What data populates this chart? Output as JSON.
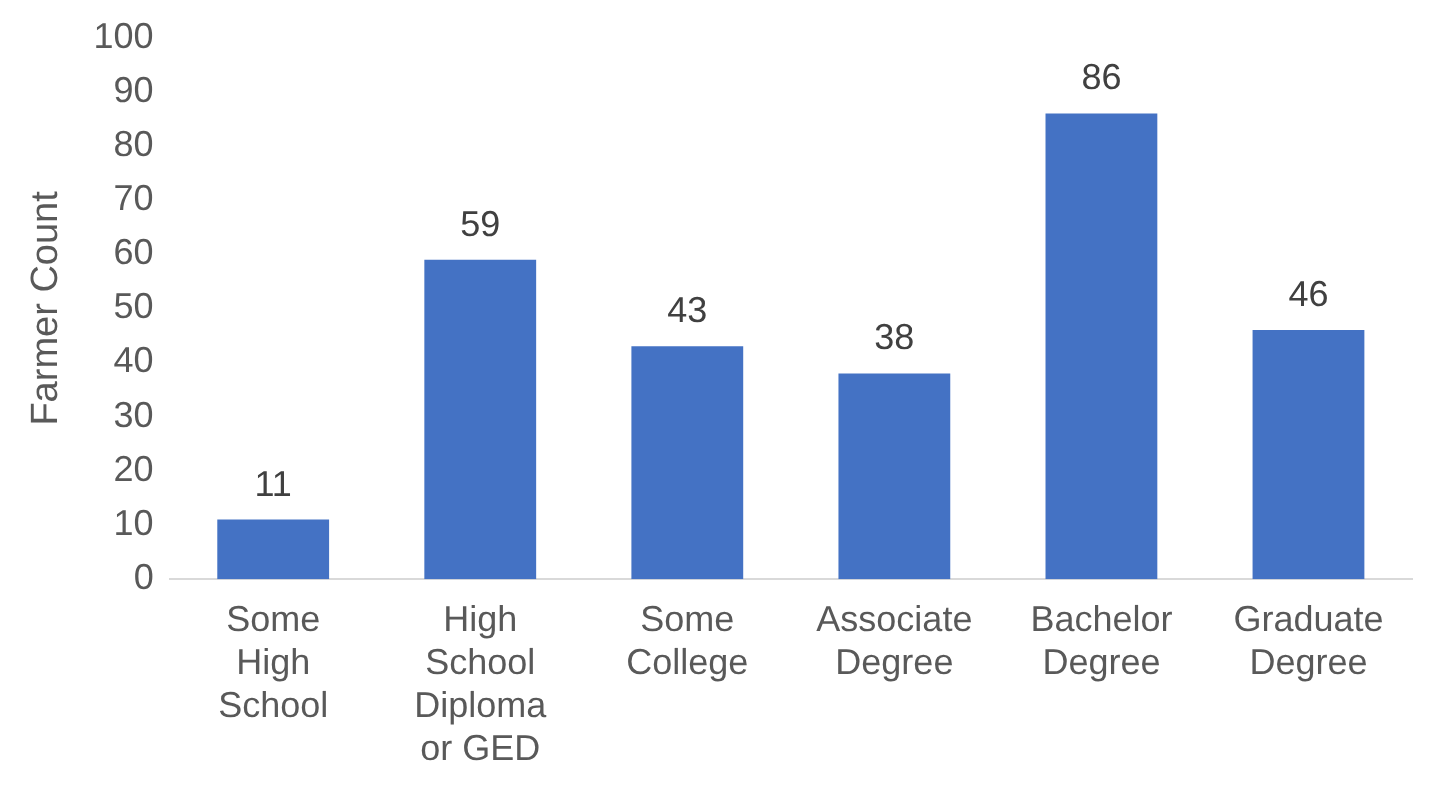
{
  "chart_data": {
    "type": "bar",
    "ylabel": "Farmer Count",
    "categories": [
      "Some High School",
      "High School Diploma or GED",
      "Some College",
      "Associate Degree",
      "Bachelor Degree",
      "Graduate Degree"
    ],
    "values": [
      11,
      59,
      43,
      38,
      86,
      46
    ],
    "color": "#4472c4",
    "ylim": [
      0,
      100
    ],
    "yticks": [
      0,
      10,
      20,
      30,
      40,
      50,
      60,
      70,
      80,
      90,
      100
    ],
    "grid": false,
    "legend": false,
    "data_labels": true
  }
}
